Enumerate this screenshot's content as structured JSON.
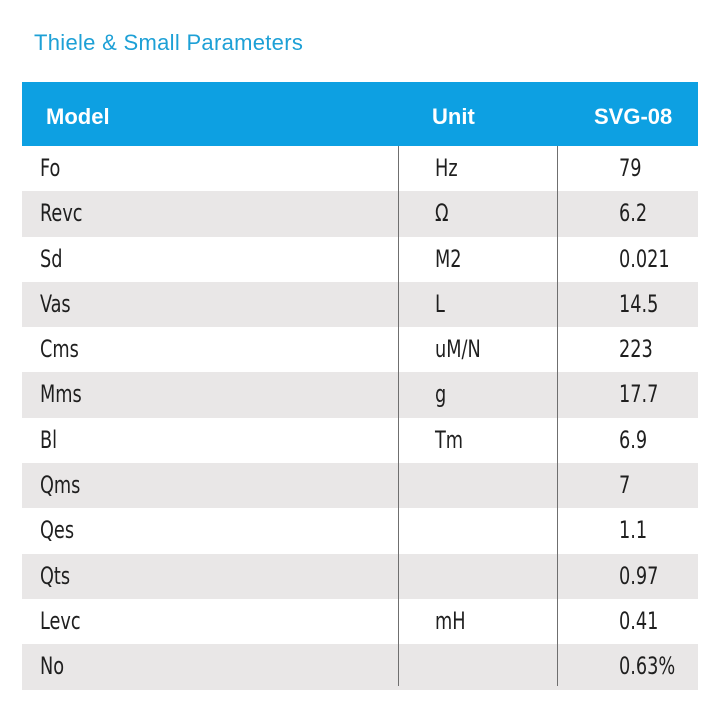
{
  "title": "Thiele & Small Parameters",
  "header": {
    "model": "Model",
    "unit": "Unit",
    "value": "SVG-08"
  },
  "rows": [
    {
      "name": "Fo",
      "unit": "Hz",
      "value": "79"
    },
    {
      "name": "Revc",
      "unit": "Ω",
      "value": "6.2"
    },
    {
      "name": "Sd",
      "unit": "M2",
      "value": "0.021"
    },
    {
      "name": "Vas",
      "unit": "L",
      "value": "14.5"
    },
    {
      "name": "Cms",
      "unit": "uM/N",
      "value": "223"
    },
    {
      "name": "Mms",
      "unit": "g",
      "value": "17.7"
    },
    {
      "name": "Bl",
      "unit": "Tm",
      "value": "6.9"
    },
    {
      "name": "Qms",
      "unit": "",
      "value": "7"
    },
    {
      "name": "Qes",
      "unit": "",
      "value": "1.1"
    },
    {
      "name": "Qts",
      "unit": "",
      "value": "0.97"
    },
    {
      "name": "Levc",
      "unit": "mH",
      "value": "0.41"
    },
    {
      "name": "No",
      "unit": "",
      "value": "0.63%"
    }
  ],
  "colors": {
    "title": "#1da0d6",
    "header_bg": "#0da0e2",
    "row_shade": "#e9e7e7"
  }
}
